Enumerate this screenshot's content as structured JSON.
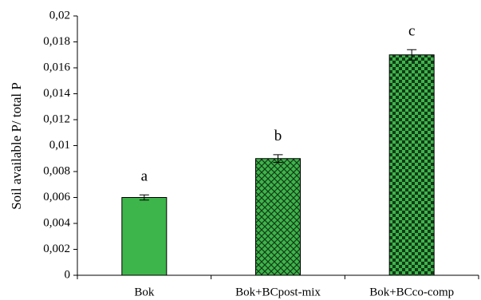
{
  "chart_data": {
    "type": "bar",
    "y_label": "Soil available P/ total P",
    "categories": [
      "Bok",
      "Bok+BCpost-mix",
      "Bok+BCco-comp"
    ],
    "values": [
      0.006,
      0.009,
      0.017
    ],
    "errors": [
      0.0002,
      0.0003,
      0.0004
    ],
    "annotations": [
      "a",
      "b",
      "c"
    ],
    "color": "#3db54a",
    "pattern_color": "#143a18",
    "patterns": [
      "solid",
      "crosshatch",
      "checker"
    ],
    "ylim": [
      0,
      0.02
    ],
    "yticks": [
      0,
      {
        "value": 0.002,
        "label": "0,002"
      },
      {
        "value": 0.004,
        "label": "0,004"
      },
      {
        "value": 0.006,
        "label": "0,006"
      },
      {
        "value": 0.008,
        "label": "0,008"
      },
      {
        "value": 0.01,
        "label": "0,01"
      },
      {
        "value": 0.012,
        "label": "0,012"
      },
      {
        "value": 0.014,
        "label": "0,014"
      },
      {
        "value": 0.016,
        "label": "0,016"
      },
      {
        "value": 0.018,
        "label": "0,018"
      },
      {
        "value": 0.02,
        "label": "0,02"
      }
    ],
    "grid": false
  }
}
